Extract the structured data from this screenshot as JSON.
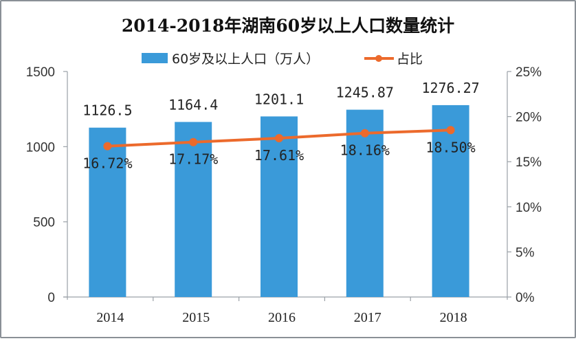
{
  "chart_data": {
    "type": "bar",
    "title": "2014-2018年湖南60岁以上人口数量统计",
    "categories": [
      "2014",
      "2015",
      "2016",
      "2017",
      "2018"
    ],
    "series": [
      {
        "name": "60岁及以上人口（万人）",
        "type": "bar",
        "axis": "left",
        "color": "#3a9ad9",
        "values": [
          1126.5,
          1164.4,
          1201.1,
          1245.87,
          1276.27
        ],
        "labels": [
          "1126.5",
          "1164.4",
          "1201.1",
          "1245.87",
          "1276.27"
        ]
      },
      {
        "name": "占比",
        "type": "line",
        "axis": "right",
        "color": "#ec6a2c",
        "values": [
          16.72,
          17.17,
          17.61,
          18.16,
          18.5
        ],
        "labels": [
          "16.72%",
          "17.17%",
          "17.61%",
          "18.16%",
          "18.50%"
        ]
      }
    ],
    "y_left": {
      "range": [
        0,
        1500
      ],
      "ticks": [
        0,
        500,
        1000,
        1500
      ],
      "tick_labels": [
        "0",
        "500",
        "1000",
        "1500"
      ]
    },
    "y_right": {
      "range": [
        0,
        25
      ],
      "ticks": [
        0,
        5,
        10,
        15,
        20,
        25
      ],
      "tick_labels": [
        "0%",
        "5%",
        "10%",
        "15%",
        "20%",
        "25%"
      ]
    },
    "xlabel": "",
    "ylabel": "",
    "grid": false,
    "legend_position": "top-center"
  }
}
